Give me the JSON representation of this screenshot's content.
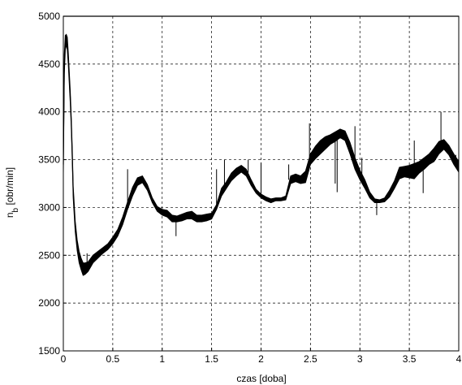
{
  "chart_data": {
    "type": "line",
    "xlabel": "czas [doba]",
    "ylabel": "n",
    "ylabel_subscript": "b",
    "ylabel_unit": " [obr/min]",
    "xlim": [
      0,
      4
    ],
    "ylim": [
      1500,
      5000
    ],
    "x_ticks": [
      0,
      0.5,
      1,
      1.5,
      2,
      2.5,
      3,
      3.5,
      4
    ],
    "x_tick_labels": [
      "0",
      "0.5",
      "1",
      "1.5",
      "2",
      "2.5",
      "3",
      "3.5",
      "4"
    ],
    "y_ticks": [
      1500,
      2000,
      2500,
      3000,
      3500,
      4000,
      4500,
      5000
    ],
    "y_tick_labels": [
      "1500",
      "2000",
      "2500",
      "3000",
      "3500",
      "4000",
      "4500",
      "5000"
    ],
    "grid": true,
    "line_color": "#000000",
    "series": [
      {
        "x": [
          0.0,
          0.01,
          0.02,
          0.03,
          0.04,
          0.05,
          0.06,
          0.07,
          0.08,
          0.09,
          0.1,
          0.12,
          0.14,
          0.16,
          0.18,
          0.2,
          0.22,
          0.25,
          0.3,
          0.35,
          0.4,
          0.45,
          0.5,
          0.55,
          0.6,
          0.65,
          0.7,
          0.75,
          0.8,
          0.85,
          0.9,
          0.95,
          1.0,
          1.05,
          1.1,
          1.15,
          1.2,
          1.25,
          1.3,
          1.35,
          1.4,
          1.45,
          1.5,
          1.55,
          1.6,
          1.65,
          1.7,
          1.75,
          1.8,
          1.85,
          1.9,
          1.95,
          2.0,
          2.05,
          2.1,
          2.15,
          2.2,
          2.25,
          2.3,
          2.35,
          2.4,
          2.45,
          2.5,
          2.55,
          2.6,
          2.65,
          2.7,
          2.75,
          2.8,
          2.85,
          2.9,
          2.95,
          3.0,
          3.05,
          3.1,
          3.15,
          3.2,
          3.25,
          3.3,
          3.35,
          3.4,
          3.45,
          3.5,
          3.55,
          3.6,
          3.65,
          3.7,
          3.75,
          3.8,
          3.85,
          3.9,
          3.95,
          4.0
        ],
        "y_low": [
          3350,
          4400,
          4650,
          4700,
          4650,
          4500,
          4300,
          4100,
          3850,
          3500,
          3100,
          2750,
          2550,
          2420,
          2350,
          2290,
          2300,
          2330,
          2420,
          2470,
          2520,
          2560,
          2620,
          2700,
          2820,
          2980,
          3120,
          3230,
          3260,
          3180,
          3050,
          2960,
          2920,
          2900,
          2850,
          2850,
          2860,
          2880,
          2880,
          2850,
          2850,
          2860,
          2880,
          2980,
          3120,
          3200,
          3280,
          3330,
          3370,
          3330,
          3230,
          3150,
          3100,
          3070,
          3050,
          3070,
          3070,
          3080,
          3250,
          3270,
          3250,
          3260,
          3450,
          3510,
          3560,
          3610,
          3660,
          3690,
          3730,
          3700,
          3560,
          3400,
          3290,
          3200,
          3100,
          3050,
          3050,
          3060,
          3110,
          3200,
          3300,
          3320,
          3310,
          3300,
          3360,
          3400,
          3450,
          3480,
          3560,
          3610,
          3550,
          3450,
          3370
        ],
        "y_high": [
          3550,
          4600,
          4800,
          4810,
          4780,
          4620,
          4420,
          4220,
          3950,
          3620,
          3220,
          2860,
          2660,
          2540,
          2470,
          2420,
          2420,
          2430,
          2500,
          2540,
          2580,
          2620,
          2690,
          2770,
          2900,
          3060,
          3210,
          3310,
          3330,
          3240,
          3100,
          3010,
          2980,
          2970,
          2920,
          2910,
          2930,
          2950,
          2960,
          2920,
          2920,
          2930,
          2940,
          3030,
          3200,
          3270,
          3360,
          3410,
          3440,
          3400,
          3290,
          3190,
          3140,
          3110,
          3090,
          3100,
          3100,
          3120,
          3330,
          3350,
          3330,
          3380,
          3560,
          3640,
          3700,
          3740,
          3760,
          3790,
          3820,
          3800,
          3680,
          3520,
          3390,
          3290,
          3160,
          3090,
          3080,
          3100,
          3180,
          3280,
          3420,
          3430,
          3440,
          3460,
          3480,
          3520,
          3560,
          3620,
          3690,
          3710,
          3650,
          3560,
          3480
        ],
        "spikes": [
          {
            "x": 0.24,
            "y": 2520
          },
          {
            "x": 0.65,
            "y": 3400
          },
          {
            "x": 1.14,
            "y": 2700
          },
          {
            "x": 1.55,
            "y": 3400
          },
          {
            "x": 1.63,
            "y": 3500
          },
          {
            "x": 1.87,
            "y": 3500
          },
          {
            "x": 2.0,
            "y": 3470
          },
          {
            "x": 2.28,
            "y": 3450
          },
          {
            "x": 2.49,
            "y": 3880
          },
          {
            "x": 2.72,
            "y": 3700
          },
          {
            "x": 2.75,
            "y": 3250
          },
          {
            "x": 2.77,
            "y": 3160
          },
          {
            "x": 2.95,
            "y": 3850
          },
          {
            "x": 3.02,
            "y": 3520
          },
          {
            "x": 3.17,
            "y": 2920
          },
          {
            "x": 3.55,
            "y": 3700
          },
          {
            "x": 3.64,
            "y": 3150
          },
          {
            "x": 3.82,
            "y": 4000
          },
          {
            "x": 3.97,
            "y": 3550
          }
        ]
      }
    ]
  }
}
